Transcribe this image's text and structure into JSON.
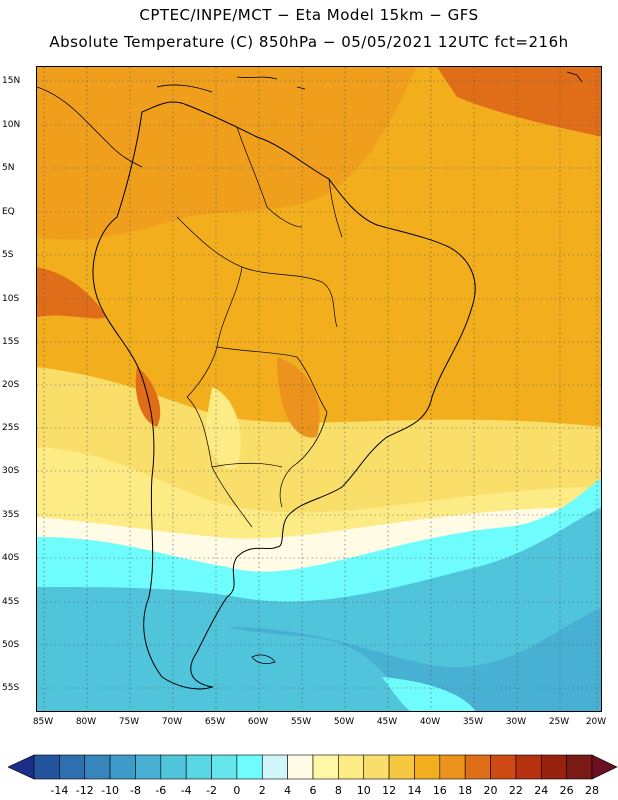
{
  "header": {
    "line1": "CPTEC/INPE/MCT −  Eta Model 15km − GFS",
    "line2": "Absolute Temperature (C) 850hPa − 05/05/2021 12UTC fct=216h"
  },
  "map": {
    "lat_labels": [
      "15N",
      "10N",
      "5N",
      "EQ",
      "5S",
      "10S",
      "15S",
      "20S",
      "25S",
      "30S",
      "35S",
      "40S",
      "45S",
      "50S",
      "55S"
    ],
    "lon_labels": [
      "85W",
      "80W",
      "75W",
      "70W",
      "65W",
      "60W",
      "55W",
      "50W",
      "45W",
      "40W",
      "35W",
      "30W",
      "25W",
      "20W"
    ]
  },
  "colorbar": {
    "labels": [
      "-14",
      "-12",
      "-10",
      "-8",
      "-6",
      "-4",
      "-2",
      "0",
      "2",
      "4",
      "6",
      "8",
      "10",
      "12",
      "14",
      "16",
      "18",
      "20",
      "22",
      "24",
      "26",
      "28"
    ],
    "colors": [
      "#1a2f8a",
      "#24549e",
      "#2e6fb0",
      "#3785bd",
      "#3e9ac8",
      "#48b0d3",
      "#4fc4db",
      "#58d6e4",
      "#65e6ec",
      "#6ffcfc",
      "#d0f6fb",
      "#fffbe4",
      "#fff6a6",
      "#fdec86",
      "#fade6a",
      "#f6c842",
      "#f2ae1c",
      "#ec931e",
      "#e06e18",
      "#cd4b12",
      "#b5310f",
      "#98220d",
      "#7a1a14",
      "#6b0f22"
    ]
  }
}
